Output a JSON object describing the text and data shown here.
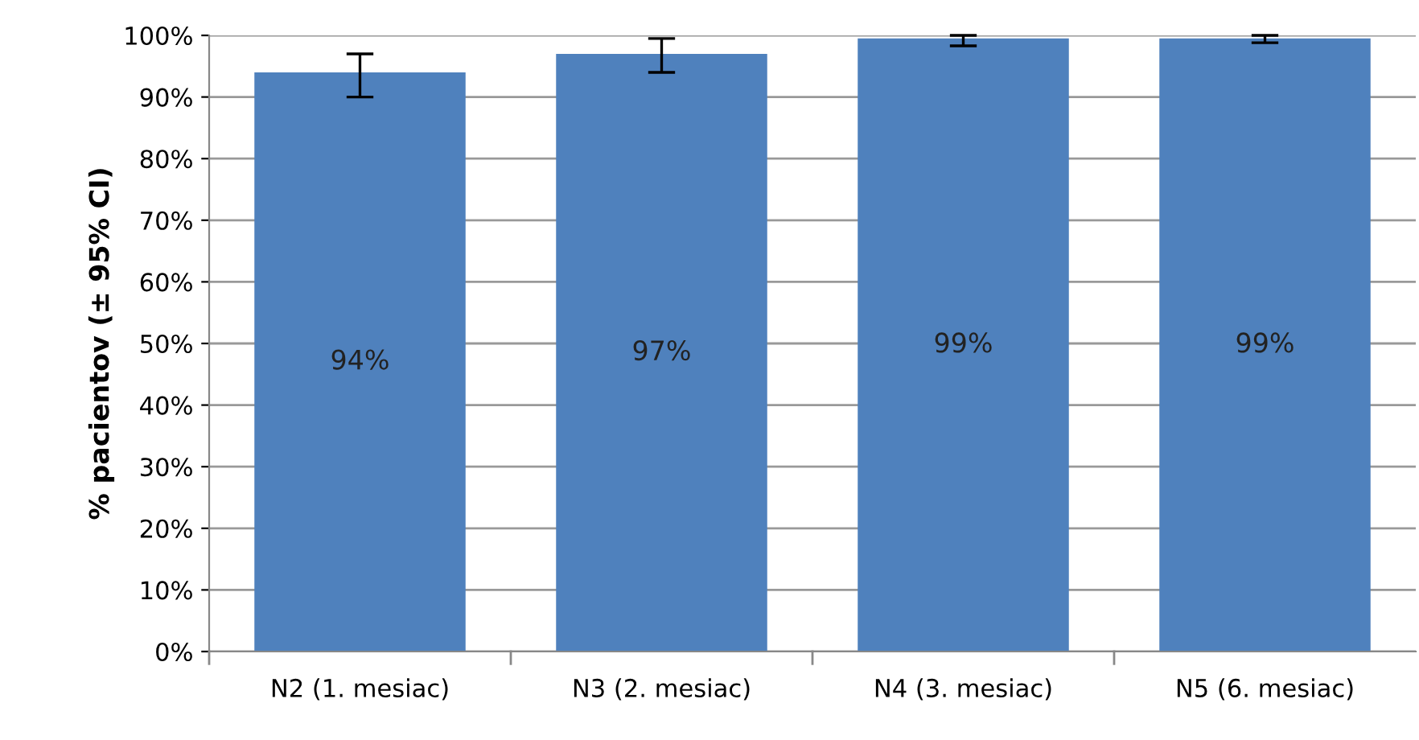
{
  "chart_data": {
    "type": "bar",
    "ylabel": "% pacientov (± 95% CI)",
    "categories": [
      "N2 (1. mesiac)",
      "N3 (2. mesiac)",
      "N4 (3. mesiac)",
      "N5 (6. mesiac)"
    ],
    "values": [
      94,
      97,
      99.5,
      99.5
    ],
    "value_labels": [
      "94%",
      "97%",
      "99%",
      "99%"
    ],
    "errors": [
      [
        90,
        97
      ],
      [
        94,
        99.5
      ],
      [
        98.3,
        100
      ],
      [
        98.8,
        100
      ]
    ],
    "color": "#4f81bd",
    "ylim": [
      0,
      100
    ],
    "yticks": [
      {
        "value": 0,
        "label": "0%"
      },
      {
        "value": 10,
        "label": "10%"
      },
      {
        "value": 20,
        "label": "20%"
      },
      {
        "value": 30,
        "label": "30%"
      },
      {
        "value": 40,
        "label": "40%"
      },
      {
        "value": 50,
        "label": "50%"
      },
      {
        "value": 60,
        "label": "60%"
      },
      {
        "value": 70,
        "label": "70%"
      },
      {
        "value": 80,
        "label": "80%"
      },
      {
        "value": 90,
        "label": "90%"
      },
      {
        "value": 100,
        "label": "100%"
      }
    ],
    "grid": "y"
  }
}
